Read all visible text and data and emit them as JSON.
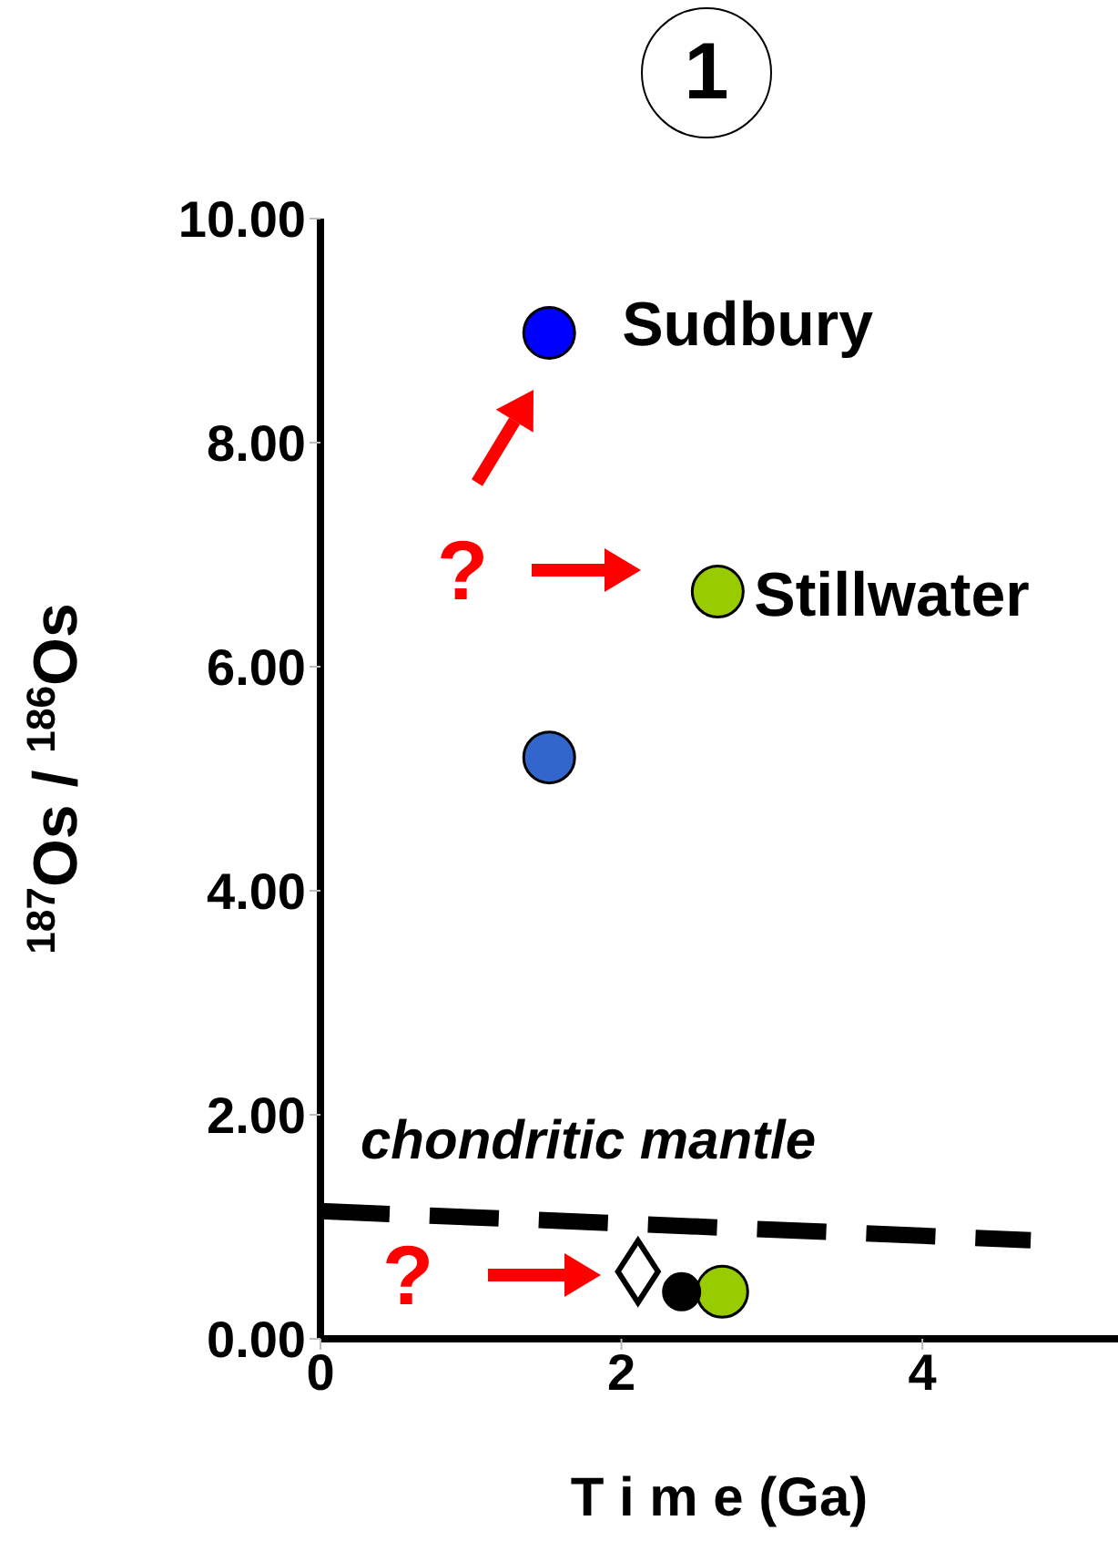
{
  "chart_data": {
    "type": "scatter",
    "title": "1",
    "xlabel": "T i m e  (Ga)",
    "ylabel": "$^{187}$Os / $^{186}$Os",
    "xlim": [
      0,
      5.3
    ],
    "xticks": [
      0,
      2,
      4
    ],
    "ylim": [
      0,
      10
    ],
    "yticks": [
      {
        "value": 0,
        "label": "0.00"
      },
      {
        "value": 2,
        "label": "2.00"
      },
      {
        "value": 4,
        "label": "4.00"
      },
      {
        "value": 6,
        "label": "6.00"
      },
      {
        "value": 8,
        "label": "8.00"
      },
      {
        "value": 10,
        "label": "10.00"
      }
    ],
    "series": [
      {
        "type": "line",
        "x": [
          0,
          4.72
        ],
        "values": [
          1.14,
          0.88
        ],
        "color": "#000000",
        "line_style": "dashed",
        "marker": "none"
      },
      {
        "x": [
          1.52
        ],
        "values": [
          8.98
        ],
        "color": "#0000ff",
        "marker": "circle"
      },
      {
        "x": [
          1.52
        ],
        "values": [
          5.19
        ],
        "color": "#3366cc",
        "marker": "circle"
      },
      {
        "x": [
          2.64
        ],
        "values": [
          6.67
        ],
        "color": "#99cc00",
        "marker": "circle"
      },
      {
        "x": [
          2.67
        ],
        "values": [
          0.42
        ],
        "color": "#99cc00",
        "marker": "circle"
      },
      {
        "x": [
          2.11
        ],
        "values": [
          0.6
        ],
        "color": "#ffffff",
        "marker": "diamond"
      },
      {
        "x": [
          2.4
        ],
        "values": [
          0.42
        ],
        "color": "#000000",
        "marker": "circle"
      }
    ],
    "annotations": [
      {
        "text": "Sudbury",
        "x": 1.52,
        "y": 8.98
      },
      {
        "text": "Stillwater",
        "x": 2.64,
        "y": 6.67
      },
      "chondritic mantle",
      "?",
      "?"
    ]
  }
}
